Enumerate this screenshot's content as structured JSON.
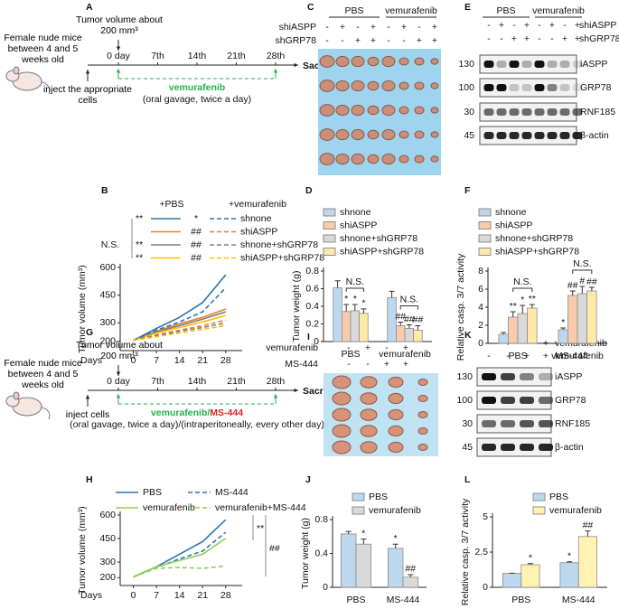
{
  "panels": {
    "A": {
      "letter": "A",
      "mice": "Female nude mice between 4 and 5 weeks old",
      "tumor": "Tumor volume about 200 mm³",
      "days": [
        "0 day",
        "7th",
        "14th",
        "21th",
        "28th"
      ],
      "end": "Sacrifice",
      "inject": "inject the appropriate cells",
      "drug": "vemurafenib",
      "route": "(oral gavage, twice a day)"
    },
    "C": {
      "letter": "C",
      "groups": [
        "PBS",
        "vemurafenib"
      ],
      "rows": [
        {
          "label": "shiASPP",
          "signs": [
            "-",
            "+",
            "-",
            "+",
            "-",
            "+",
            "-",
            "+"
          ]
        },
        {
          "label": "shGRP78",
          "signs": [
            "-",
            "-",
            "+",
            "+",
            "-",
            "-",
            "+",
            "+"
          ]
        }
      ]
    },
    "E": {
      "letter": "E",
      "groups": [
        "PBS",
        "vemurafenib"
      ],
      "rows": [
        {
          "label": "shiASPP",
          "signs": [
            "-",
            "+",
            "-",
            "+",
            "-",
            "+",
            "-",
            "+"
          ]
        },
        {
          "label": "shGRP78",
          "signs": [
            "-",
            "-",
            "+",
            "+",
            "-",
            "-",
            "+",
            "+"
          ]
        }
      ],
      "blots": [
        {
          "mw": 130,
          "protein": "iASPP"
        },
        {
          "mw": 100,
          "protein": "GRP78"
        },
        {
          "mw": 30,
          "protein": "RNF185"
        },
        {
          "mw": 45,
          "protein": "β-actin"
        }
      ]
    },
    "G": {
      "letter": "G",
      "mice": "Female nude mice between 4 and 5 weeks old",
      "tumor": "Tumor volume about 200 mm³",
      "days": [
        "0 day",
        "7th",
        "14th",
        "21th",
        "28th"
      ],
      "end": "Sacrifice",
      "inject": "inject cells",
      "drug": "vemurafenib/",
      "drug2": "MS-444",
      "route": "(oral gavage, twice a day)/(intraperitoneally, every other day)"
    },
    "I": {
      "letter": "I",
      "rows": [
        {
          "label": "vemurafenib",
          "signs": [
            "-",
            "+",
            "-",
            "+"
          ]
        },
        {
          "label": "MS-444",
          "signs": [
            "-",
            "-",
            "+",
            "+"
          ]
        }
      ]
    },
    "K": {
      "letter": "K",
      "rows": [
        {
          "label": "vemurafenib",
          "signs": [
            "-",
            "+",
            "-",
            "+"
          ]
        },
        {
          "label": "MS-444",
          "signs": [
            "-",
            "-",
            "+",
            "+"
          ]
        }
      ],
      "blots": [
        {
          "mw": 130,
          "protein": "iASPP"
        },
        {
          "mw": 100,
          "protein": "GRP78"
        },
        {
          "mw": 30,
          "protein": "RNF185"
        },
        {
          "mw": 45,
          "protein": "β-actin"
        }
      ]
    }
  },
  "chart_data": [
    {
      "letter": "B",
      "type": "line",
      "ylabel": "Tumor volume (mm³)",
      "xlabel": "Days",
      "x": [
        0,
        7,
        14,
        21,
        28
      ],
      "xlim": [
        -4,
        33
      ],
      "xticks": [
        0,
        7,
        14,
        21,
        28
      ],
      "ylim": [
        150,
        600
      ],
      "yticks": [
        200,
        300,
        450,
        600
      ],
      "legend_headers": [
        "+PBS",
        "+vemurafenib"
      ],
      "legend_note": "N.S.",
      "series": [
        {
          "name": "shnone",
          "color": "#2e75b6",
          "dashed": false,
          "stat": "**",
          "values": [
            205,
            270,
            330,
            410,
            560
          ]
        },
        {
          "name": "shiASPP",
          "color": "#ed7d31",
          "dashed": false,
          "values": [
            205,
            255,
            295,
            330,
            375
          ]
        },
        {
          "name": "shnone+shGRP78",
          "color": "#7f7f7f",
          "dashed": false,
          "stat": "**",
          "values": [
            205,
            250,
            285,
            320,
            360
          ]
        },
        {
          "name": "shiASPP+shGRP78",
          "color": "#ffc000",
          "dashed": false,
          "stat": "**",
          "values": [
            205,
            245,
            275,
            305,
            340
          ]
        },
        {
          "color": "#2e75b6",
          "dashed": true,
          "stat": "*",
          "values": [
            205,
            260,
            305,
            360,
            490
          ]
        },
        {
          "color": "#ed7d31",
          "dashed": true,
          "stat": "##",
          "values": [
            205,
            235,
            260,
            285,
            315
          ]
        },
        {
          "color": "#7f7f7f",
          "dashed": true,
          "stat": "##",
          "values": [
            205,
            230,
            255,
            275,
            300
          ]
        },
        {
          "color": "#ffc000",
          "dashed": true,
          "stat": "##",
          "values": [
            205,
            225,
            245,
            265,
            285
          ]
        }
      ]
    },
    {
      "letter": "D",
      "type": "bar",
      "ylabel": "Tumor weight (g)",
      "categories": [
        "PBS",
        "vemurafenib"
      ],
      "ylim": [
        0,
        0.8
      ],
      "yticks": [
        0,
        0.2,
        0.4,
        0.6,
        0.8
      ],
      "series": [
        {
          "name": "shnone",
          "color": "#bdd7ee",
          "values": [
            0.61,
            0.5
          ],
          "errors": [
            0.08,
            0.07
          ],
          "sig": [
            null,
            null
          ]
        },
        {
          "name": "shiASPP",
          "color": "#f8cbad",
          "values": [
            0.34,
            0.18
          ],
          "errors": [
            0.08,
            0.04
          ],
          "sig": [
            "*",
            "##"
          ]
        },
        {
          "name": "shnone+shGRP78",
          "color": "#d9d9d9",
          "values": [
            0.35,
            0.15
          ],
          "errors": [
            0.07,
            0.04
          ],
          "sig": [
            "*",
            "##"
          ]
        },
        {
          "name": "shiASPP+shGRP78",
          "color": "#ffe9a8",
          "values": [
            0.32,
            0.13
          ],
          "errors": [
            0.05,
            0.05
          ],
          "sig": [
            "*",
            "##"
          ]
        }
      ],
      "brackets": [
        {
          "text": "N.S.",
          "category": 0,
          "from": 1,
          "to": 3
        },
        {
          "text": "N.S.",
          "category": 1,
          "from": 1,
          "to": 3
        }
      ]
    },
    {
      "letter": "F",
      "type": "bar",
      "ylabel": "Relative casp. 3/7 activity",
      "categories": [
        "PBS",
        "vemurafenib"
      ],
      "ylim": [
        0,
        8
      ],
      "yticks": [
        0,
        2,
        4,
        6,
        8
      ],
      "series": [
        {
          "name": "shnone",
          "color": "#bdd7ee",
          "values": [
            1.0,
            1.5
          ],
          "errors": [
            0.2,
            0.2
          ],
          "sig": [
            null,
            "*"
          ]
        },
        {
          "name": "shiASPP",
          "color": "#f8cbad",
          "values": [
            2.9,
            5.3
          ],
          "errors": [
            0.6,
            0.5
          ],
          "sig": [
            "**",
            "##"
          ]
        },
        {
          "name": "shnone+shGRP78",
          "color": "#d9d9d9",
          "values": [
            3.3,
            5.5
          ],
          "errors": [
            0.9,
            0.8
          ],
          "sig": [
            "*",
            "#"
          ]
        },
        {
          "name": "shiASPP+shGRP78",
          "color": "#ffe9a8",
          "values": [
            3.9,
            5.8
          ],
          "errors": [
            0.4,
            0.4
          ],
          "sig": [
            "**",
            "##"
          ]
        }
      ],
      "brackets": [
        {
          "text": "N.S.",
          "category": 0,
          "from": 1,
          "to": 3
        },
        {
          "text": "N.S.",
          "category": 1,
          "from": 1,
          "to": 3
        }
      ]
    },
    {
      "letter": "H",
      "type": "line",
      "ylabel": "Tumor volume (mm³)",
      "xlabel": "Days",
      "x": [
        0,
        7,
        14,
        21,
        28
      ],
      "xlim": [
        -4,
        33
      ],
      "xticks": [
        0,
        7,
        14,
        21,
        28
      ],
      "ylim": [
        150,
        600
      ],
      "yticks": [
        200,
        300,
        450,
        600
      ],
      "annotations": [
        "**",
        "##"
      ],
      "series": [
        {
          "name": "PBS",
          "color": "#2e75b6",
          "dashed": false,
          "values": [
            205,
            270,
            350,
            430,
            570
          ]
        },
        {
          "name": "MS-444",
          "color": "#2e75b6",
          "dashed": true,
          "values": [
            205,
            265,
            320,
            370,
            490
          ]
        },
        {
          "name": "vemurafenib",
          "color": "#92d050",
          "dashed": false,
          "values": [
            205,
            270,
            310,
            350,
            450
          ]
        },
        {
          "name": "vemurafenib+MS-444",
          "color": "#92d050",
          "dashed": true,
          "values": [
            205,
            260,
            265,
            260,
            275
          ]
        }
      ]
    },
    {
      "letter": "J",
      "type": "bar",
      "ylabel": "Tumor weight (g)",
      "categories": [
        "PBS",
        "MS-444"
      ],
      "ylim": [
        0,
        0.8
      ],
      "yticks": [
        0,
        0.4,
        0.8
      ],
      "series": [
        {
          "name": "PBS",
          "color": "#bdd7ee",
          "values": [
            0.63,
            0.46
          ],
          "errors": [
            0.03,
            0.05
          ],
          "sig": [
            null,
            "*"
          ]
        },
        {
          "name": "vemurafenib",
          "color": "#d9d9d9",
          "values": [
            0.51,
            0.12
          ],
          "errors": [
            0.06,
            0.03
          ],
          "sig": [
            "*",
            "##"
          ]
        }
      ]
    },
    {
      "letter": "L",
      "type": "bar",
      "ylabel": "Relative casp. 3/7 activity",
      "categories": [
        "PBS",
        "MS-444"
      ],
      "ylim": [
        0,
        5
      ],
      "yticks": [
        0,
        2.5,
        5
      ],
      "series": [
        {
          "name": "PBS",
          "color": "#bdd7ee",
          "values": [
            1.0,
            1.75
          ],
          "errors": [
            0,
            0.06
          ],
          "sig": [
            null,
            "*"
          ]
        },
        {
          "name": "vemurafenib",
          "color": "#fff2b3",
          "values": [
            1.6,
            3.6
          ],
          "errors": [
            0.08,
            0.4
          ],
          "sig": [
            "*",
            "##"
          ]
        }
      ]
    }
  ]
}
